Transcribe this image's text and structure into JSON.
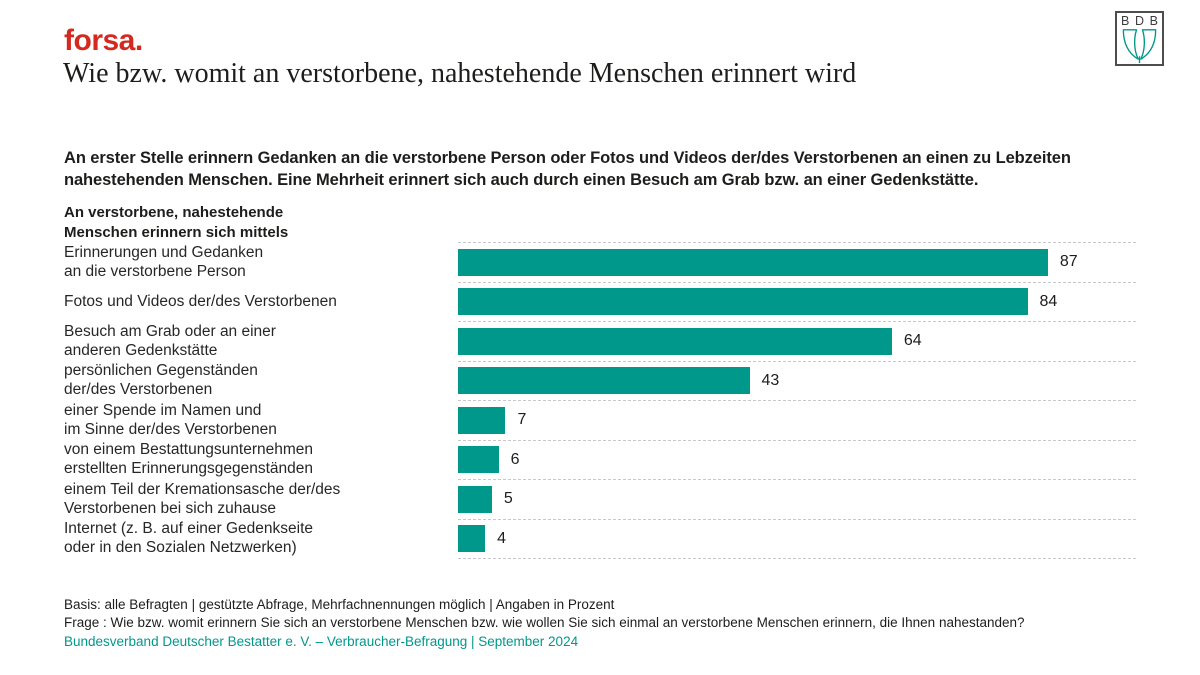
{
  "header": {
    "forsa_logo": "forsa.",
    "title": "Wie bzw. womit an verstorbene, nahestehende Menschen erinnert wird",
    "bdb": {
      "letters": [
        "B",
        "D",
        "B"
      ]
    }
  },
  "subtitle": "An erster Stelle erinnern Gedanken an die verstorbene Person oder Fotos und Videos der/des Verstorbenen an einen zu Lebzeiten\nnahestehenden Menschen. Eine Mehrheit erinnert sich auch durch einen Besuch am Grab bzw. an einer Gedenkstätte.",
  "chart_data": {
    "type": "bar",
    "orientation": "horizontal",
    "title": "An verstorbene, nahestehende\nMenschen erinnern sich mittels",
    "categories": [
      "Erinnerungen und Gedanken\nan die verstorbene Person",
      "Fotos und Videos der/des Verstorbenen",
      "Besuch am Grab oder an einer\nanderen Gedenkstätte",
      "persönlichen Gegenständen\nder/des Verstorbenen",
      "einer Spende im Namen und\nim Sinne der/des Verstorbenen",
      "von einem Bestattungsunternehmen\nerstellten Erinnerungsgegenständen",
      "einem Teil der Kremationsasche der/des\nVerstorbenen bei sich zuhause",
      "Internet (z. B. auf einer Gedenkseite\noder in den Sozialen Netzwerken)"
    ],
    "values": [
      87,
      84,
      64,
      43,
      7,
      6,
      5,
      4
    ],
    "unit": "percent",
    "xlim": [
      0,
      100
    ],
    "bar_color": "#00988b",
    "grid": "dashed-row-separators",
    "legend": "none",
    "value_labels": "outside-end"
  },
  "footer": {
    "basis_line": "Basis: alle Befragten | gestützte Abfrage, Mehrfachnennungen möglich | Angaben in Prozent",
    "question_line": "Frage : Wie bzw. womit erinnern Sie sich an verstorbene Menschen bzw. wie wollen Sie sich einmal an verstorbene Menschen erinnern, die Ihnen nahestanden?",
    "source_line": "Bundesverband Deutscher Bestatter e. V. – Verbraucher-Befragung | September 2024"
  },
  "colors": {
    "accent_teal": "#00988b",
    "logo_red": "#d5291f",
    "text_dark": "#1d1d1b",
    "separator_gray": "#c8c8c8"
  }
}
